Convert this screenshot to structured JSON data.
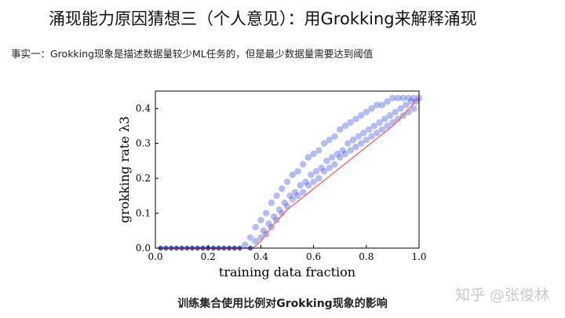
{
  "slide": {
    "title": "涌现能力原因猜想三（个人意见）：用Grokking来解释涌现",
    "subtitle": "事实一：Grokking现象是描述数据量较少ML任务的，但是最少数据量需要达到阈值",
    "caption": "训练集合使用比例对Grokking现象的影响",
    "watermark": "知乎 @张俊林"
  },
  "colors": {
    "points": "#2a3fe0",
    "median_line": "#ff6666",
    "axis": "#000000"
  },
  "chart_data": {
    "type": "scatter",
    "xlabel": "training data fraction",
    "ylabel": "grokking rate λ3",
    "xlim": [
      0.0,
      1.0
    ],
    "ylim": [
      0.0,
      0.45
    ],
    "xticks": [
      "0.0",
      "0.2",
      "0.4",
      "0.6",
      "0.8",
      "1.0"
    ],
    "yticks": [
      "0.0",
      "0.1",
      "0.2",
      "0.3",
      "0.4"
    ],
    "grid": false,
    "legend": "none",
    "series": [
      {
        "role": "point-cloud",
        "x": [
          0.02,
          0.04,
          0.06,
          0.08,
          0.1,
          0.12,
          0.14,
          0.16,
          0.18,
          0.2,
          0.22,
          0.24,
          0.26,
          0.28,
          0.3,
          0.32,
          0.34,
          0.36,
          0.36,
          0.38,
          0.38,
          0.4,
          0.4,
          0.41,
          0.42,
          0.42,
          0.43,
          0.44,
          0.44,
          0.45,
          0.46,
          0.46,
          0.47,
          0.48,
          0.48,
          0.49,
          0.5,
          0.5,
          0.51,
          0.52,
          0.52,
          0.53,
          0.54,
          0.54,
          0.55,
          0.56,
          0.56,
          0.57,
          0.58,
          0.58,
          0.59,
          0.6,
          0.6,
          0.61,
          0.62,
          0.62,
          0.63,
          0.64,
          0.64,
          0.65,
          0.66,
          0.66,
          0.67,
          0.68,
          0.68,
          0.69,
          0.7,
          0.7,
          0.71,
          0.72,
          0.72,
          0.73,
          0.74,
          0.74,
          0.75,
          0.76,
          0.76,
          0.77,
          0.78,
          0.78,
          0.79,
          0.8,
          0.8,
          0.81,
          0.82,
          0.82,
          0.83,
          0.84,
          0.84,
          0.85,
          0.86,
          0.86,
          0.87,
          0.88,
          0.88,
          0.89,
          0.9,
          0.9,
          0.91,
          0.92,
          0.92,
          0.93,
          0.94,
          0.94,
          0.95,
          0.96,
          0.96,
          0.97,
          0.98,
          0.98,
          0.99,
          1.0
        ],
        "y": [
          0.0,
          0.0,
          0.0,
          0.0,
          0.0,
          0.0,
          0.0,
          0.0,
          0.0,
          0.0,
          0.0,
          0.0,
          0.0,
          0.0,
          0.0,
          0.0,
          0.01,
          0.0,
          0.03,
          0.02,
          0.06,
          0.03,
          0.08,
          0.05,
          0.04,
          0.1,
          0.07,
          0.06,
          0.13,
          0.09,
          0.08,
          0.15,
          0.11,
          0.1,
          0.17,
          0.13,
          0.12,
          0.19,
          0.15,
          0.14,
          0.21,
          0.16,
          0.15,
          0.22,
          0.18,
          0.16,
          0.24,
          0.19,
          0.18,
          0.26,
          0.21,
          0.19,
          0.27,
          0.22,
          0.2,
          0.28,
          0.23,
          0.22,
          0.3,
          0.25,
          0.23,
          0.31,
          0.26,
          0.24,
          0.32,
          0.27,
          0.26,
          0.34,
          0.28,
          0.27,
          0.35,
          0.3,
          0.28,
          0.36,
          0.31,
          0.29,
          0.37,
          0.32,
          0.3,
          0.38,
          0.33,
          0.31,
          0.39,
          0.34,
          0.32,
          0.4,
          0.35,
          0.33,
          0.41,
          0.36,
          0.34,
          0.41,
          0.37,
          0.35,
          0.42,
          0.38,
          0.36,
          0.43,
          0.39,
          0.37,
          0.43,
          0.4,
          0.38,
          0.43,
          0.41,
          0.39,
          0.43,
          0.42,
          0.4,
          0.43,
          0.42,
          0.43
        ]
      },
      {
        "role": "median-line",
        "x": [
          0.02,
          0.1,
          0.2,
          0.3,
          0.37,
          0.4,
          0.45,
          0.5,
          0.55,
          0.6,
          0.65,
          0.7,
          0.75,
          0.8,
          0.85,
          0.9,
          0.95,
          1.0
        ],
        "y": [
          0.0,
          0.0,
          0.0,
          0.0,
          0.0,
          0.02,
          0.07,
          0.11,
          0.14,
          0.17,
          0.2,
          0.23,
          0.26,
          0.29,
          0.32,
          0.35,
          0.39,
          0.43
        ]
      }
    ]
  }
}
